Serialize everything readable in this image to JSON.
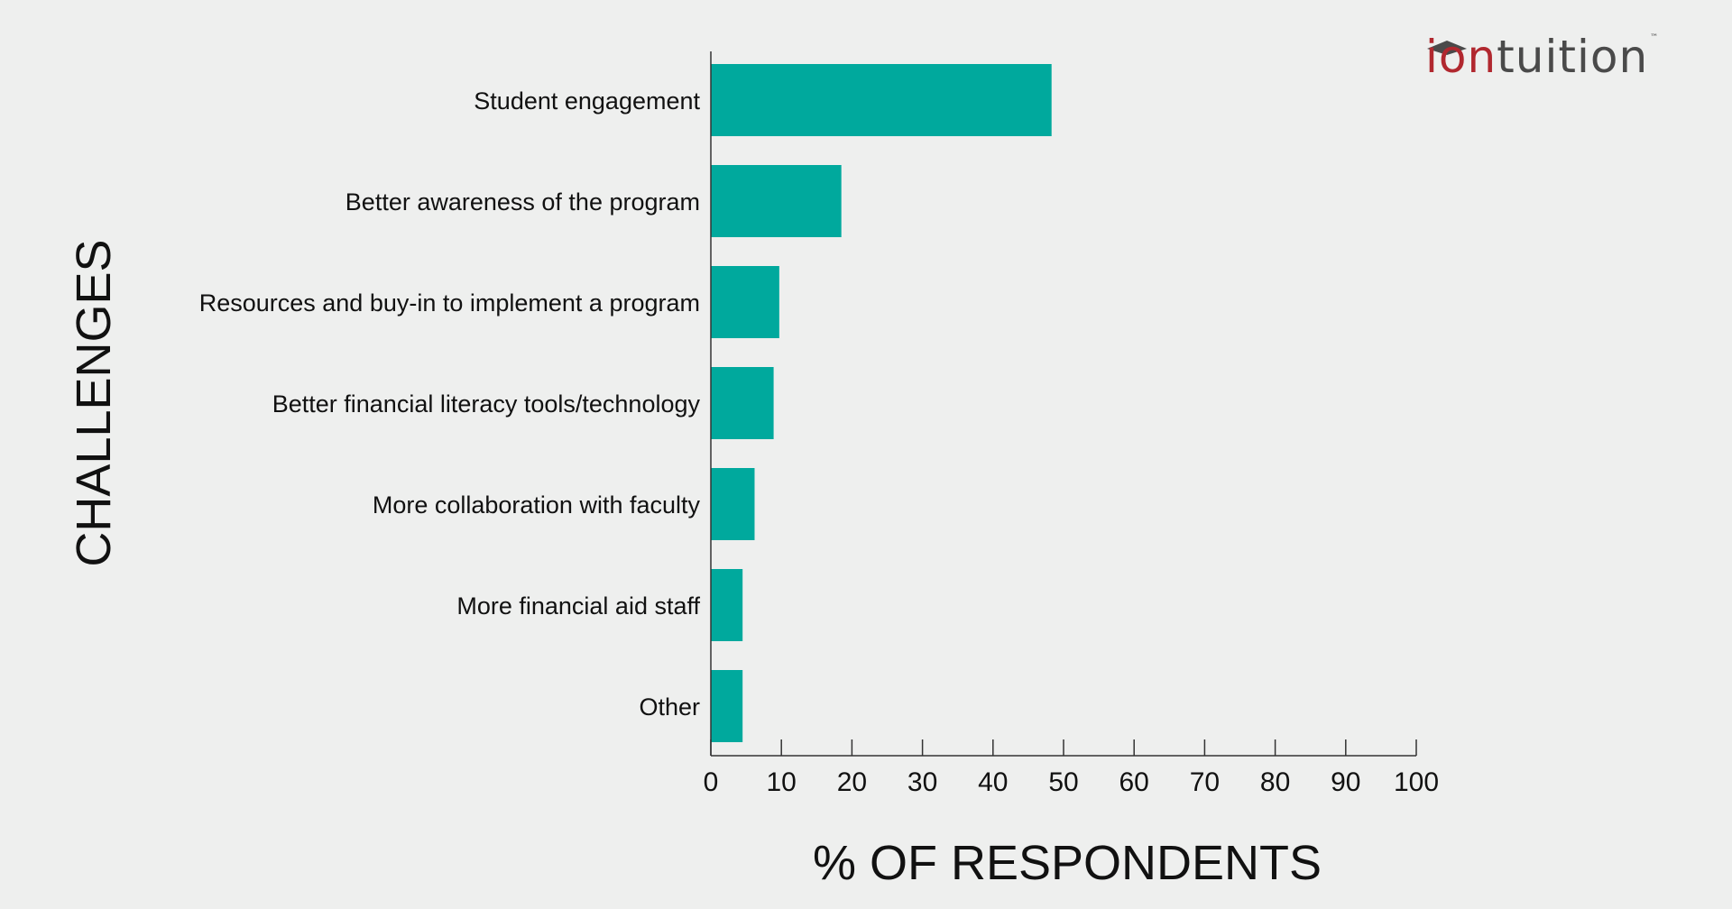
{
  "logo": {
    "accent_text": "ion",
    "rest_text": "tuition",
    "trademark": "™",
    "accent_color": "#b1282f",
    "text_color": "#4a4a4a"
  },
  "chart_data": {
    "type": "bar",
    "orientation": "horizontal",
    "categories": [
      "Student engagement",
      "Better awareness of the program",
      "Resources and buy-in to implement a program",
      "Better financial literacy tools/technology",
      "More collaboration with faculty",
      "More financial aid staff",
      "Other"
    ],
    "values": [
      48.3,
      18.5,
      9.7,
      8.9,
      6.2,
      4.5,
      4.5
    ],
    "xlabel": "% OF RESPONDENTS",
    "ylabel": "CHALLENGES",
    "xlim": [
      0,
      100
    ],
    "xticks": [
      "0",
      "10",
      "20",
      "30",
      "40",
      "50",
      "60",
      "70",
      "80",
      "90",
      "100"
    ],
    "bar_color": "#00a99d",
    "grid": false,
    "legend": "none"
  }
}
